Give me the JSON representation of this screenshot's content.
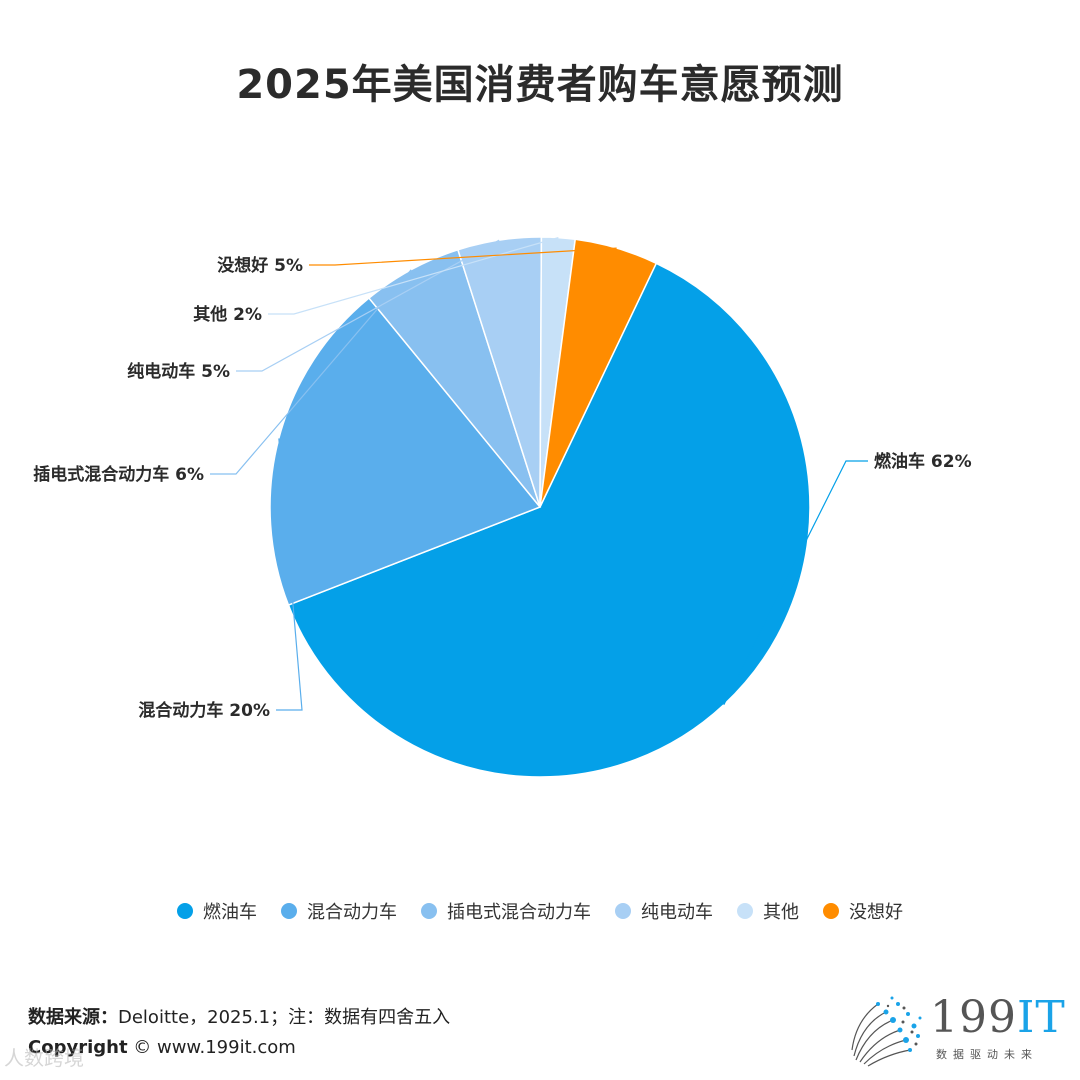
{
  "chart_data": {
    "type": "pie",
    "title": "2025年美国消费者购车意愿预测",
    "slices": [
      {
        "name": "燃油车",
        "value": 62,
        "label": "燃油车 62%",
        "color": "#04a0e8"
      },
      {
        "name": "混合动力车",
        "value": 20,
        "label": "混合动力车 20%",
        "color": "#5aaeec"
      },
      {
        "name": "插电式混合动力车",
        "value": 6,
        "label": "插电式混合动力车 6%",
        "color": "#88c0f0"
      },
      {
        "name": "纯电动车",
        "value": 5,
        "label": "纯电动车 5%",
        "color": "#a8cff4"
      },
      {
        "name": "其他",
        "value": 2,
        "label": "其他 2%",
        "color": "#c7e1f8"
      },
      {
        "name": "没想好",
        "value": 5,
        "label": "没想好 5%",
        "color": "#ff8c00"
      }
    ],
    "legend_position": "bottom"
  },
  "footer": {
    "source_label": "数据来源：",
    "source_text": "Deloitte，2025.1；注：数据有四舍五入",
    "copyright_label": "Copyright",
    "copyright_text": " ©  www.199it.com"
  },
  "logo": {
    "text_main": "199",
    "text_accent": "IT",
    "tagline": "数据驱动未来"
  },
  "watermark": "人数跨境"
}
